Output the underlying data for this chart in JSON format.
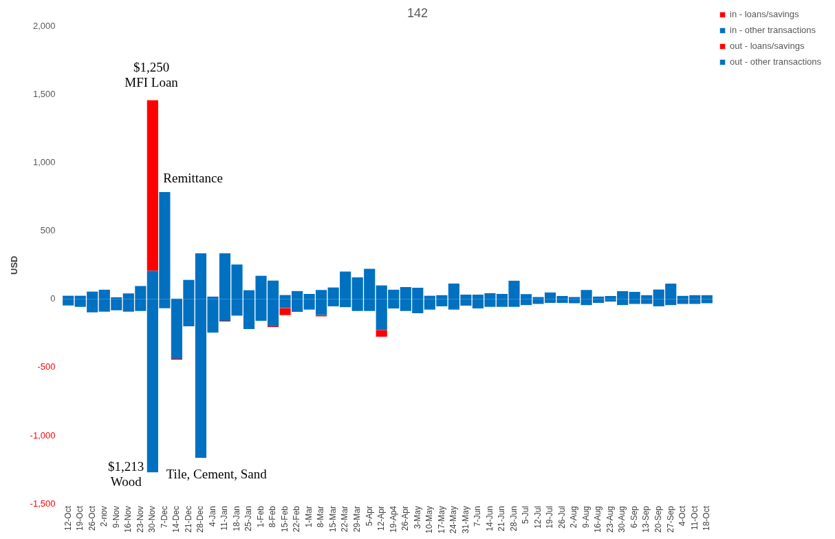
{
  "chart_data": {
    "type": "bar",
    "title": "142",
    "ylabel": "USD",
    "stacked": true,
    "categories": [
      "12-Oct",
      "19-Oct",
      "26-Oct",
      "2-nov",
      "9-Nov",
      "16-Nov",
      "23-Nov",
      "30-Nov",
      "7-Dec",
      "14-Dec",
      "21-Dec",
      "28-Dec",
      "4-Jan",
      "11-Jan",
      "18-Jan",
      "25-Jan",
      "1-Feb",
      "8-Feb",
      "15-Feb",
      "22-Feb",
      "1-Mar",
      "8-Mar",
      "15-Mar",
      "22-Mar",
      "29-Mar",
      "5-Apr",
      "12-Apr",
      "19-Ap4",
      "26-Apr",
      "3-May",
      "10-May",
      "17-May",
      "24-May",
      "31-May",
      "7-Jun",
      "14-Jun",
      "21-Jun",
      "28-Jun",
      "5-Jul",
      "12-Jul",
      "19-Jul",
      "26-Jul",
      "2-Aug",
      "9-Aug",
      "16-Aug",
      "23-Aug",
      "30-Aug",
      "6-Sep",
      "13-Sep",
      "20-Sep",
      "27-Sep",
      "4-Oct",
      "11-Oct",
      "18-Oct"
    ],
    "series": [
      {
        "name": "in - other transactions",
        "color": "#0070c0",
        "values": [
          27,
          27,
          57,
          71,
          16,
          43,
          98,
          210,
          786,
          6,
          143,
          337,
          20,
          337,
          255,
          67,
          173,
          138,
          32,
          61,
          39,
          68,
          87,
          204,
          162,
          224,
          102,
          71,
          90,
          85,
          27,
          31,
          116,
          34,
          34,
          46,
          39,
          137,
          38,
          17,
          51,
          24,
          17,
          68,
          21,
          24,
          60,
          55,
          31,
          72,
          115,
          26,
          31,
          31
        ]
      },
      {
        "name": "in - loans/savings",
        "color": "#ff0000",
        "values": [
          null,
          null,
          null,
          null,
          null,
          null,
          null,
          1250,
          null,
          null,
          null,
          null,
          null,
          null,
          null,
          null,
          null,
          null,
          null,
          null,
          null,
          null,
          null,
          null,
          null,
          null,
          null,
          null,
          null,
          null,
          null,
          null,
          null,
          null,
          null,
          null,
          null,
          null,
          null,
          null,
          null,
          null,
          null,
          null,
          null,
          null,
          null,
          null,
          null,
          null,
          null,
          null,
          null,
          null
        ]
      },
      {
        "name": "out - other transactions",
        "color": "#0070c0",
        "values": [
          -45,
          -55,
          -96,
          -90,
          -80,
          -90,
          -86,
          -1269,
          -65,
          -435,
          -198,
          -1163,
          -245,
          -157,
          -120,
          -218,
          -157,
          -198,
          -64,
          -92,
          -75,
          -115,
          -51,
          -58,
          -85,
          -85,
          -225,
          -68,
          -85,
          -102,
          -75,
          -51,
          -75,
          -46,
          -66,
          -55,
          -55,
          -55,
          -43,
          -34,
          -26,
          -26,
          -29,
          -43,
          -26,
          -17,
          -43,
          -34,
          -34,
          -51,
          -43,
          -34,
          -34,
          -29
        ]
      },
      {
        "name": "out - loans/savings",
        "color": "#ff0000",
        "values": [
          null,
          null,
          null,
          null,
          null,
          null,
          null,
          null,
          null,
          -8,
          null,
          null,
          null,
          -6,
          null,
          null,
          null,
          -6,
          -52,
          null,
          null,
          -10,
          null,
          null,
          null,
          null,
          -50,
          null,
          null,
          null,
          null,
          null,
          null,
          null,
          null,
          null,
          null,
          null,
          null,
          null,
          null,
          null,
          null,
          null,
          null,
          null,
          null,
          null,
          null,
          null,
          null,
          null,
          null,
          null
        ]
      }
    ],
    "ylim": [
      -1500,
      2000
    ],
    "yticks": [
      {
        "value": -1500,
        "label": "-1,500"
      },
      {
        "value": -1000,
        "label": "-1,000"
      },
      -500,
      0,
      500,
      {
        "value": 1000,
        "label": "1,000"
      },
      {
        "value": 1500,
        "label": "1,500"
      },
      {
        "value": 2000,
        "label": "2,000"
      }
    ],
    "grid": false,
    "legend": "top right",
    "annotations": [
      "$1,250\nMFI Loan",
      "Remittance",
      "$1,213\nWood",
      "Tile, Cement, Sand"
    ]
  }
}
